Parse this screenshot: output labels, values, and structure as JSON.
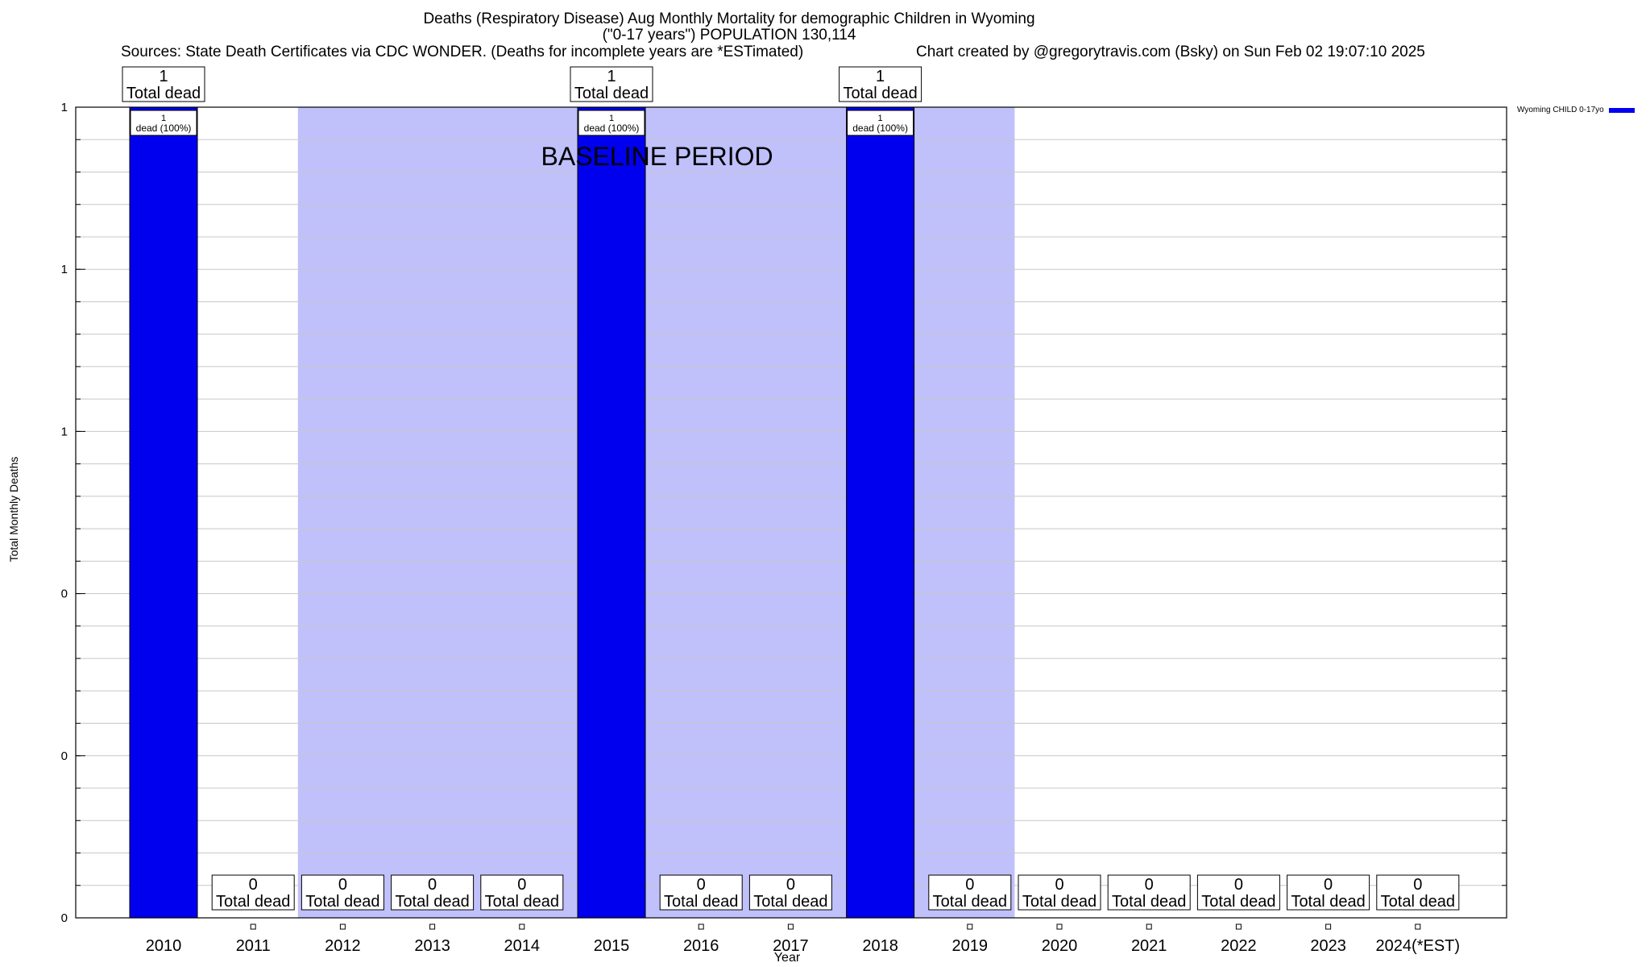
{
  "chart_data": {
    "type": "bar",
    "title_line1": "Deaths (Respiratory Disease) Aug Monthly Mortality for demographic Children in Wyoming",
    "title_line2": "(\"0-17 years\") POPULATION 130,114",
    "sources": "Sources: State Death Certificates via CDC WONDER. (Deaths for incomplete years are *ESTimated)",
    "credit": "Chart created by @gregorytravis.com (Bsky) on Sun Feb 02 19:07:10 2025",
    "xlabel": "Year",
    "ylabel": "Total Monthly Deaths",
    "categories": [
      "2010",
      "2011",
      "2012",
      "2013",
      "2014",
      "2015",
      "2016",
      "2017",
      "2018",
      "2019",
      "2020",
      "2021",
      "2022",
      "2023",
      "2024(*EST)"
    ],
    "series": [
      {
        "name": "Wyoming CHILD 0-17yo",
        "color": "#0000ee",
        "values": [
          1,
          0,
          0,
          0,
          0,
          1,
          0,
          0,
          1,
          0,
          0,
          0,
          0,
          0,
          0
        ]
      }
    ],
    "total_label": "Total dead",
    "bar_label_suffix": "dead (100%)",
    "ylim": [
      0,
      1
    ],
    "ytick_values": [
      0,
      0.2,
      0.4,
      0.6,
      0.8,
      1
    ],
    "ytick_labels": [
      "0",
      "0",
      "0",
      "1",
      "1",
      "1"
    ],
    "baseline_period": {
      "label": "BASELINE PERIOD",
      "start": "2012",
      "end": "2019",
      "color": "#c0c0fb"
    },
    "grid": true,
    "legend_position": "top-right"
  }
}
